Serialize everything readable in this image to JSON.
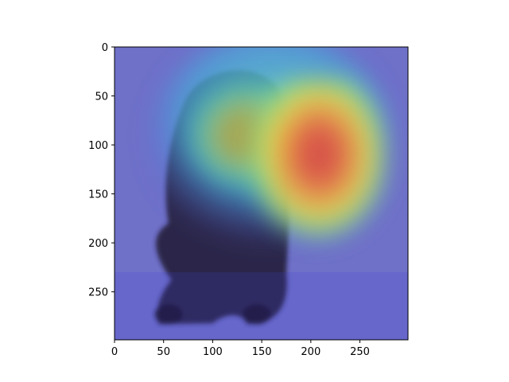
{
  "chart_data": {
    "type": "heatmap",
    "title": "",
    "xlabel": "",
    "ylabel": "",
    "xlim": [
      0,
      299
    ],
    "ylim": [
      299,
      0
    ],
    "y_inverted": true,
    "x_ticks": [
      0,
      50,
      100,
      150,
      200,
      250
    ],
    "y_ticks": [
      0,
      50,
      100,
      150,
      200,
      250
    ],
    "x_tick_labels": [
      "0",
      "50",
      "100",
      "150",
      "200",
      "250"
    ],
    "y_tick_labels": [
      "0",
      "50",
      "100",
      "150",
      "200",
      "250"
    ],
    "colormap": "jet",
    "overlay_alpha": 0.5,
    "grid": false,
    "heat_blobs": [
      {
        "cx": 208,
        "cy": 82,
        "rx": 70,
        "ry": 90,
        "value": 1.0
      },
      {
        "cx": 135,
        "cy": 90,
        "rx": 60,
        "ry": 55,
        "value": 0.72
      },
      {
        "cx": 160,
        "cy": 150,
        "rx": 95,
        "ry": 110,
        "value": 0.45
      }
    ],
    "background_value": 0.12,
    "underlying_image": "black long-haired spaniel dog sitting on grey ground"
  },
  "colors": {
    "cold": "#3b3bd6",
    "cool": "#45c8d8",
    "warm": "#f5d23c",
    "hot": "#e8463a",
    "dog": "#1a1428",
    "ground": "#7d7fb0",
    "axis": "#000000"
  }
}
